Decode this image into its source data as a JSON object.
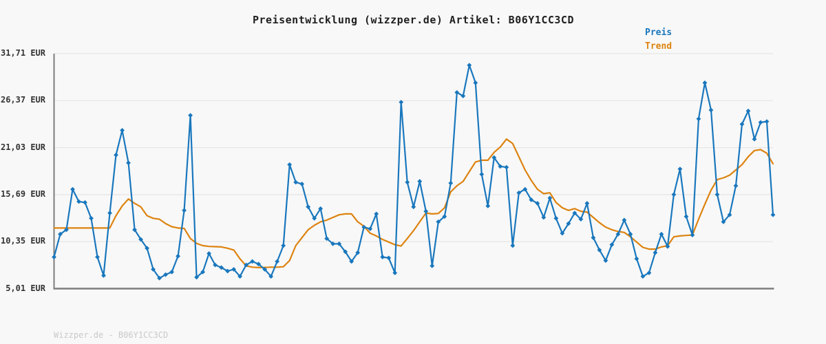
{
  "title": "Preisentwicklung (wizzper.de) Artikel: B06Y1CC3CD",
  "legend": {
    "preis": "Preis",
    "trend": "Trend"
  },
  "footer": "Wizzper.de - B06Y1CC3CD",
  "colors": {
    "background": "#f8f8f8",
    "title": "#1f1f1f",
    "tick_label": "#333333",
    "grid": "#e5e5e5",
    "axis": "#7d7d7d",
    "preis": "#1977bd",
    "trend": "#dd830f",
    "footer": "#c9c9c9"
  },
  "chart_data": {
    "type": "line",
    "title": "Preisentwicklung (wizzper.de) Artikel: B06Y1CC3CD",
    "ylabel": "",
    "xlabel": "",
    "unit": "EUR",
    "ylim": [
      5.01,
      31.71
    ],
    "grid": true,
    "legend_position": "top-right",
    "y_ticks": [
      {
        "value": 31.71,
        "label": "31,71 EUR"
      },
      {
        "value": 26.37,
        "label": "26,37 EUR"
      },
      {
        "value": 21.03,
        "label": "21,03 EUR"
      },
      {
        "value": 15.69,
        "label": "15,69 EUR"
      },
      {
        "value": 10.35,
        "label": "10,35 EUR"
      },
      {
        "value": 5.01,
        "label": "5,01 EUR"
      }
    ],
    "series": [
      {
        "name": "Preis",
        "marker": "diamond",
        "values": [
          8.6,
          11.2,
          11.7,
          16.3,
          14.9,
          14.8,
          13.0,
          8.6,
          6.5,
          13.6,
          20.2,
          23.0,
          19.3,
          11.7,
          10.6,
          9.6,
          7.2,
          6.2,
          6.6,
          6.9,
          8.7,
          13.9,
          24.7,
          6.3,
          6.9,
          9.0,
          7.7,
          7.4,
          7.0,
          7.2,
          6.4,
          7.7,
          8.1,
          7.8,
          7.2,
          6.4,
          8.1,
          9.9,
          19.1,
          17.1,
          16.9,
          14.3,
          13.0,
          14.1,
          10.7,
          10.1,
          10.1,
          9.2,
          8.1,
          9.1,
          12.0,
          11.8,
          13.5,
          8.6,
          8.5,
          6.8,
          26.2,
          17.1,
          14.3,
          17.2,
          13.8,
          7.6,
          12.6,
          13.2,
          17.0,
          27.3,
          26.9,
          30.4,
          28.4,
          18.0,
          14.4,
          19.9,
          18.9,
          18.8,
          9.9,
          15.9,
          16.3,
          15.1,
          14.7,
          13.1,
          15.3,
          13.0,
          11.3,
          12.4,
          13.6,
          12.9,
          14.7,
          10.8,
          9.4,
          8.2,
          10.0,
          11.2,
          12.8,
          11.2,
          8.4,
          6.4,
          6.8,
          9.1,
          11.2,
          9.8,
          15.7,
          18.6,
          13.2,
          11.1,
          24.3,
          28.4,
          25.3,
          15.7,
          12.6,
          13.4,
          16.7,
          23.7,
          25.2,
          22.0,
          23.9,
          24.0,
          13.4
        ]
      },
      {
        "name": "Trend",
        "marker": "none",
        "values": [
          11.9,
          11.9,
          11.9,
          11.9,
          11.9,
          11.9,
          11.9,
          11.9,
          11.9,
          11.9,
          13.3,
          14.4,
          15.2,
          14.7,
          14.3,
          13.3,
          13.0,
          12.9,
          12.4,
          12.05,
          11.9,
          11.85,
          10.7,
          10.15,
          9.9,
          9.8,
          9.78,
          9.75,
          9.6,
          9.4,
          8.4,
          7.6,
          7.45,
          7.4,
          7.42,
          7.45,
          7.45,
          7.5,
          8.2,
          9.9,
          10.8,
          11.7,
          12.2,
          12.6,
          12.8,
          13.1,
          13.4,
          13.5,
          13.5,
          12.6,
          12.1,
          11.3,
          11.0,
          10.6,
          10.3,
          10.0,
          9.85,
          10.7,
          11.6,
          12.6,
          13.6,
          13.5,
          13.55,
          14.2,
          16.0,
          16.7,
          17.2,
          18.3,
          19.4,
          19.6,
          19.6,
          20.5,
          21.1,
          22.0,
          21.5,
          20.0,
          18.5,
          17.3,
          16.3,
          15.8,
          15.9,
          14.8,
          14.2,
          13.9,
          14.1,
          13.8,
          13.7,
          13.1,
          12.5,
          12.0,
          11.7,
          11.5,
          11.4,
          10.9,
          10.3,
          9.7,
          9.5,
          9.5,
          9.75,
          9.9,
          10.9,
          11.0,
          11.05,
          11.1,
          12.9,
          14.6,
          16.2,
          17.4,
          17.6,
          17.9,
          18.5,
          19.1,
          20.0,
          20.7,
          20.8,
          20.4,
          19.2
        ]
      }
    ]
  }
}
